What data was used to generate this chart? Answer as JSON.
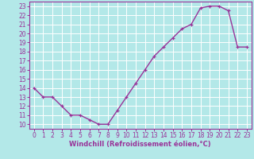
{
  "x": [
    0,
    1,
    2,
    3,
    4,
    5,
    6,
    7,
    8,
    9,
    10,
    11,
    12,
    13,
    14,
    15,
    16,
    17,
    18,
    19,
    20,
    21,
    22,
    23
  ],
  "y": [
    14,
    13,
    13,
    12,
    11,
    11,
    10.5,
    10,
    10,
    11.5,
    13,
    14.5,
    16,
    17.5,
    18.5,
    19.5,
    20.5,
    21,
    22.8,
    23,
    23,
    22.5,
    18.5,
    18.5
  ],
  "line_color": "#993399",
  "marker": "+",
  "bg_color": "#b3e8e8",
  "grid_color": "#ffffff",
  "axis_color": "#993399",
  "xlabel": "Windchill (Refroidissement éolien,°C)",
  "ylabel": "",
  "xlim": [
    -0.5,
    23.5
  ],
  "ylim": [
    9.5,
    23.5
  ],
  "yticks": [
    10,
    11,
    12,
    13,
    14,
    15,
    16,
    17,
    18,
    19,
    20,
    21,
    22,
    23
  ],
  "xticks": [
    0,
    1,
    2,
    3,
    4,
    5,
    6,
    7,
    8,
    9,
    10,
    11,
    12,
    13,
    14,
    15,
    16,
    17,
    18,
    19,
    20,
    21,
    22,
    23
  ],
  "xlabel_fontsize": 6.0,
  "tick_fontsize": 5.5,
  "line_width": 1.0,
  "marker_size": 3.5
}
